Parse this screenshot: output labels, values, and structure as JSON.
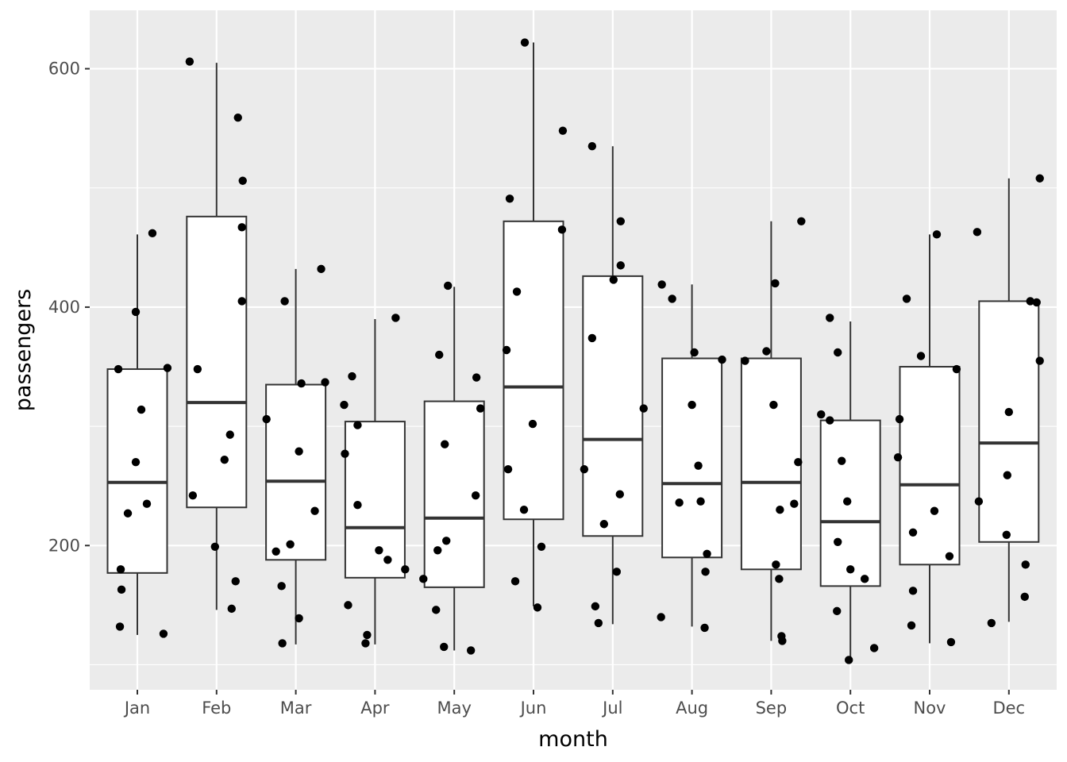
{
  "chart_data": {
    "type": "boxplot",
    "xlabel": "month",
    "ylabel": "passengers",
    "ylim": [
      79,
      649
    ],
    "y_ticks": [
      200,
      400,
      600
    ],
    "y_minor_ticks": [
      100,
      300,
      500
    ],
    "grid": true,
    "categories": [
      "Jan",
      "Feb",
      "Mar",
      "Apr",
      "May",
      "Jun",
      "Jul",
      "Aug",
      "Sep",
      "Oct",
      "Nov",
      "Dec"
    ],
    "boxes": [
      {
        "category": "Jan",
        "lower_whisker": 125,
        "q1": 177,
        "median": 253,
        "q3": 348,
        "upper_whisker": 461
      },
      {
        "category": "Feb",
        "lower_whisker": 146,
        "q1": 232,
        "median": 320,
        "q3": 476,
        "upper_whisker": 605
      },
      {
        "category": "Mar",
        "lower_whisker": 117,
        "q1": 188,
        "median": 254,
        "q3": 335,
        "upper_whisker": 432
      },
      {
        "category": "Apr",
        "lower_whisker": 117,
        "q1": 173,
        "median": 215,
        "q3": 304,
        "upper_whisker": 390
      },
      {
        "category": "May",
        "lower_whisker": 112,
        "q1": 165,
        "median": 223,
        "q3": 321,
        "upper_whisker": 417
      },
      {
        "category": "Jun",
        "lower_whisker": 149,
        "q1": 222,
        "median": 333,
        "q3": 472,
        "upper_whisker": 622
      },
      {
        "category": "Jul",
        "lower_whisker": 134,
        "q1": 208,
        "median": 289,
        "q3": 426,
        "upper_whisker": 535
      },
      {
        "category": "Aug",
        "lower_whisker": 132,
        "q1": 190,
        "median": 252,
        "q3": 357,
        "upper_whisker": 419
      },
      {
        "category": "Sep",
        "lower_whisker": 120,
        "q1": 180,
        "median": 253,
        "q3": 357,
        "upper_whisker": 472
      },
      {
        "category": "Oct",
        "lower_whisker": 104,
        "q1": 166,
        "median": 220,
        "q3": 305,
        "upper_whisker": 388
      },
      {
        "category": "Nov",
        "lower_whisker": 118,
        "q1": 184,
        "median": 251,
        "q3": 350,
        "upper_whisker": 461
      },
      {
        "category": "Dec",
        "lower_whisker": 136,
        "q1": 203,
        "median": 286,
        "q3": 405,
        "upper_whisker": 508
      }
    ],
    "points": [
      {
        "x": 0.76,
        "y": 348
      },
      {
        "x": 0.78,
        "y": 132
      },
      {
        "x": 0.79,
        "y": 180
      },
      {
        "x": 0.8,
        "y": 163
      },
      {
        "x": 0.88,
        "y": 227
      },
      {
        "x": 0.98,
        "y": 270
      },
      {
        "x": 0.98,
        "y": 396
      },
      {
        "x": 1.05,
        "y": 314
      },
      {
        "x": 1.12,
        "y": 235
      },
      {
        "x": 1.19,
        "y": 462
      },
      {
        "x": 1.33,
        "y": 126
      },
      {
        "x": 1.38,
        "y": 349
      },
      {
        "x": 1.66,
        "y": 606
      },
      {
        "x": 1.7,
        "y": 242
      },
      {
        "x": 1.76,
        "y": 348
      },
      {
        "x": 1.98,
        "y": 199
      },
      {
        "x": 2.1,
        "y": 272
      },
      {
        "x": 2.17,
        "y": 293
      },
      {
        "x": 2.19,
        "y": 147
      },
      {
        "x": 2.24,
        "y": 170
      },
      {
        "x": 2.27,
        "y": 559
      },
      {
        "x": 2.32,
        "y": 467
      },
      {
        "x": 2.32,
        "y": 405
      },
      {
        "x": 2.33,
        "y": 506
      },
      {
        "x": 2.63,
        "y": 306
      },
      {
        "x": 2.75,
        "y": 195
      },
      {
        "x": 2.82,
        "y": 166
      },
      {
        "x": 2.83,
        "y": 118
      },
      {
        "x": 2.93,
        "y": 201
      },
      {
        "x": 2.86,
        "y": 405
      },
      {
        "x": 3.04,
        "y": 279
      },
      {
        "x": 3.04,
        "y": 139
      },
      {
        "x": 3.07,
        "y": 336
      },
      {
        "x": 3.24,
        "y": 229
      },
      {
        "x": 3.32,
        "y": 432
      },
      {
        "x": 3.37,
        "y": 337
      },
      {
        "x": 3.61,
        "y": 318
      },
      {
        "x": 3.62,
        "y": 277
      },
      {
        "x": 3.66,
        "y": 150
      },
      {
        "x": 3.71,
        "y": 342
      },
      {
        "x": 3.78,
        "y": 301
      },
      {
        "x": 3.78,
        "y": 234
      },
      {
        "x": 3.88,
        "y": 118
      },
      {
        "x": 3.9,
        "y": 125
      },
      {
        "x": 4.05,
        "y": 196
      },
      {
        "x": 4.16,
        "y": 188
      },
      {
        "x": 4.26,
        "y": 391
      },
      {
        "x": 4.38,
        "y": 180
      },
      {
        "x": 4.61,
        "y": 172
      },
      {
        "x": 4.77,
        "y": 146
      },
      {
        "x": 4.79,
        "y": 196
      },
      {
        "x": 4.81,
        "y": 360
      },
      {
        "x": 4.87,
        "y": 115
      },
      {
        "x": 4.88,
        "y": 285
      },
      {
        "x": 4.9,
        "y": 204
      },
      {
        "x": 4.92,
        "y": 418
      },
      {
        "x": 5.21,
        "y": 112
      },
      {
        "x": 5.27,
        "y": 242
      },
      {
        "x": 5.28,
        "y": 341
      },
      {
        "x": 5.33,
        "y": 315
      },
      {
        "x": 5.66,
        "y": 364
      },
      {
        "x": 5.68,
        "y": 264
      },
      {
        "x": 5.7,
        "y": 491
      },
      {
        "x": 5.77,
        "y": 170
      },
      {
        "x": 5.79,
        "y": 413
      },
      {
        "x": 5.88,
        "y": 230
      },
      {
        "x": 5.89,
        "y": 622
      },
      {
        "x": 5.99,
        "y": 302
      },
      {
        "x": 6.05,
        "y": 148
      },
      {
        "x": 6.1,
        "y": 199
      },
      {
        "x": 6.36,
        "y": 465
      },
      {
        "x": 6.37,
        "y": 548
      },
      {
        "x": 6.64,
        "y": 264
      },
      {
        "x": 6.74,
        "y": 535
      },
      {
        "x": 6.74,
        "y": 374
      },
      {
        "x": 6.78,
        "y": 149
      },
      {
        "x": 6.82,
        "y": 135
      },
      {
        "x": 6.89,
        "y": 218
      },
      {
        "x": 7.01,
        "y": 423
      },
      {
        "x": 7.05,
        "y": 178
      },
      {
        "x": 7.09,
        "y": 243
      },
      {
        "x": 7.1,
        "y": 472
      },
      {
        "x": 7.1,
        "y": 435
      },
      {
        "x": 7.39,
        "y": 315
      },
      {
        "x": 7.61,
        "y": 140
      },
      {
        "x": 7.62,
        "y": 419
      },
      {
        "x": 7.75,
        "y": 407
      },
      {
        "x": 7.84,
        "y": 236
      },
      {
        "x": 8.0,
        "y": 318
      },
      {
        "x": 8.03,
        "y": 362
      },
      {
        "x": 8.08,
        "y": 267
      },
      {
        "x": 8.11,
        "y": 237
      },
      {
        "x": 8.16,
        "y": 131
      },
      {
        "x": 8.17,
        "y": 178
      },
      {
        "x": 8.19,
        "y": 193
      },
      {
        "x": 8.38,
        "y": 356
      },
      {
        "x": 8.67,
        "y": 355
      },
      {
        "x": 8.94,
        "y": 363
      },
      {
        "x": 9.03,
        "y": 318
      },
      {
        "x": 9.05,
        "y": 420
      },
      {
        "x": 9.06,
        "y": 184
      },
      {
        "x": 9.1,
        "y": 172
      },
      {
        "x": 9.11,
        "y": 230
      },
      {
        "x": 9.13,
        "y": 124
      },
      {
        "x": 9.14,
        "y": 120
      },
      {
        "x": 9.29,
        "y": 235
      },
      {
        "x": 9.34,
        "y": 270
      },
      {
        "x": 9.38,
        "y": 472
      },
      {
        "x": 9.63,
        "y": 310
      },
      {
        "x": 9.74,
        "y": 305
      },
      {
        "x": 9.74,
        "y": 391
      },
      {
        "x": 9.83,
        "y": 145
      },
      {
        "x": 9.84,
        "y": 203
      },
      {
        "x": 9.84,
        "y": 362
      },
      {
        "x": 9.89,
        "y": 271
      },
      {
        "x": 9.98,
        "y": 104
      },
      {
        "x": 9.96,
        "y": 237
      },
      {
        "x": 10.0,
        "y": 180
      },
      {
        "x": 10.18,
        "y": 172
      },
      {
        "x": 10.3,
        "y": 114
      },
      {
        "x": 10.6,
        "y": 274
      },
      {
        "x": 10.62,
        "y": 306
      },
      {
        "x": 10.71,
        "y": 407
      },
      {
        "x": 10.77,
        "y": 133
      },
      {
        "x": 10.79,
        "y": 162
      },
      {
        "x": 10.79,
        "y": 211
      },
      {
        "x": 10.89,
        "y": 359
      },
      {
        "x": 11.06,
        "y": 229
      },
      {
        "x": 11.09,
        "y": 461
      },
      {
        "x": 11.25,
        "y": 191
      },
      {
        "x": 11.27,
        "y": 119
      },
      {
        "x": 11.34,
        "y": 348
      },
      {
        "x": 11.6,
        "y": 463
      },
      {
        "x": 11.62,
        "y": 237
      },
      {
        "x": 11.78,
        "y": 135
      },
      {
        "x": 11.97,
        "y": 209
      },
      {
        "x": 11.98,
        "y": 259
      },
      {
        "x": 12.0,
        "y": 312
      },
      {
        "x": 12.2,
        "y": 157
      },
      {
        "x": 12.21,
        "y": 184
      },
      {
        "x": 12.27,
        "y": 405
      },
      {
        "x": 12.35,
        "y": 404
      },
      {
        "x": 12.39,
        "y": 355
      },
      {
        "x": 12.39,
        "y": 508
      }
    ]
  }
}
